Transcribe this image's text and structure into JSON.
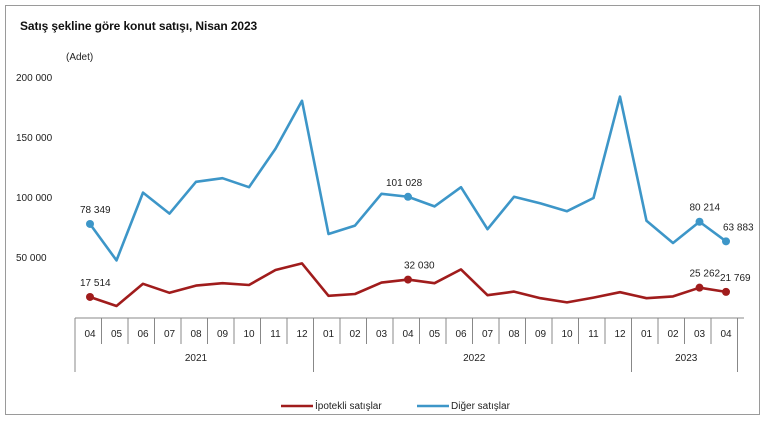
{
  "chart_data": {
    "type": "line",
    "title": "Satış şekline göre konut satışı, Nisan 2023",
    "unit_label": "(Adet)",
    "ylim": [
      0,
      200000
    ],
    "yticks": [
      "200 000",
      "150 000",
      "100 000",
      "50 000"
    ],
    "ytick_values": [
      200000,
      150000,
      100000,
      50000
    ],
    "grid": false,
    "legend_position": "bottom",
    "categories": [
      "04",
      "05",
      "06",
      "07",
      "08",
      "09",
      "10",
      "11",
      "12",
      "01",
      "02",
      "03",
      "04",
      "05",
      "06",
      "07",
      "08",
      "09",
      "10",
      "11",
      "12",
      "01",
      "02",
      "03",
      "04"
    ],
    "year_groups": [
      {
        "label": "2021",
        "start": 0,
        "end": 8
      },
      {
        "label": "2022",
        "start": 9,
        "end": 20
      },
      {
        "label": "2023",
        "start": 21,
        "end": 24
      }
    ],
    "series": [
      {
        "name": "İpotekli satışlar",
        "color": "#a01c1c",
        "values": [
          17514,
          10000,
          28500,
          21000,
          27000,
          29000,
          27500,
          40000,
          45500,
          18500,
          20000,
          29500,
          32030,
          29000,
          40500,
          19000,
          22000,
          16500,
          13000,
          17000,
          21500,
          16500,
          18000,
          25262,
          21769
        ],
        "labels": [
          {
            "index": 0,
            "text": "17 514"
          },
          {
            "index": 12,
            "text": "32 030"
          },
          {
            "index": 23,
            "text": "25 262"
          },
          {
            "index": 24,
            "text": "21 769"
          }
        ]
      },
      {
        "name": "Diğer satışlar",
        "color": "#3d96c8",
        "values": [
          78349,
          48000,
          104500,
          87000,
          113500,
          116500,
          109000,
          141000,
          181000,
          70000,
          77000,
          103500,
          101028,
          93000,
          109000,
          74000,
          101000,
          95500,
          89000,
          100000,
          184500,
          81000,
          62500,
          80214,
          63883
        ],
        "labels": [
          {
            "index": 0,
            "text": "78 349"
          },
          {
            "index": 12,
            "text": "101 028"
          },
          {
            "index": 23,
            "text": "80 214"
          },
          {
            "index": 24,
            "text": "63 883"
          }
        ]
      }
    ]
  }
}
